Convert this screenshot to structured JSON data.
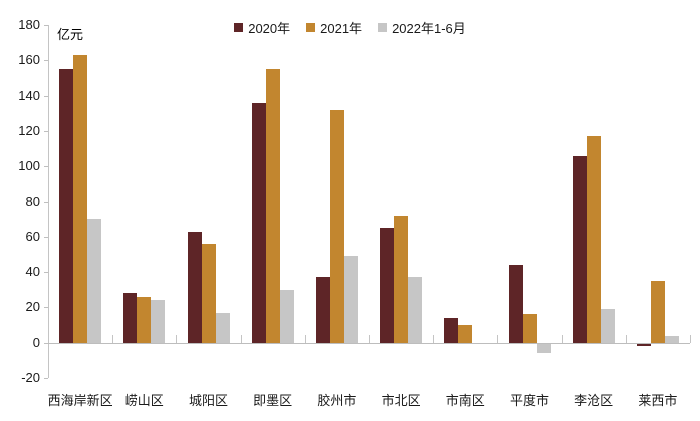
{
  "chart": {
    "unit_label": "亿元"
  },
  "chart_data": {
    "type": "bar",
    "title": "",
    "xlabel": "",
    "ylabel": "亿元",
    "ylim": [
      -20,
      180
    ],
    "ytick_step": 20,
    "yticks": [
      180,
      160,
      140,
      120,
      100,
      80,
      60,
      40,
      20,
      0,
      -20
    ],
    "grid": false,
    "legend_position": "top-center",
    "categories": [
      "西海岸新区",
      "崂山区",
      "城阳区",
      "即墨区",
      "胶州市",
      "市北区",
      "市南区",
      "平度市",
      "李沧区",
      "莱西市"
    ],
    "series": [
      {
        "name": "2020年",
        "color": "#5e2527",
        "values": [
          155,
          28,
          63,
          136,
          37,
          65,
          14,
          44,
          106,
          -2
        ]
      },
      {
        "name": "2021年",
        "color": "#c2862f",
        "values": [
          163,
          26,
          56,
          155,
          132,
          72,
          10,
          16,
          117,
          35
        ]
      },
      {
        "name": "2022年1-6月",
        "color": "#c6c6c6",
        "values": [
          70,
          24,
          17,
          30,
          49,
          37,
          0,
          -6,
          19,
          4
        ]
      }
    ],
    "axis_color": "#c4c4c4",
    "text_color": "#1a1a1a"
  }
}
